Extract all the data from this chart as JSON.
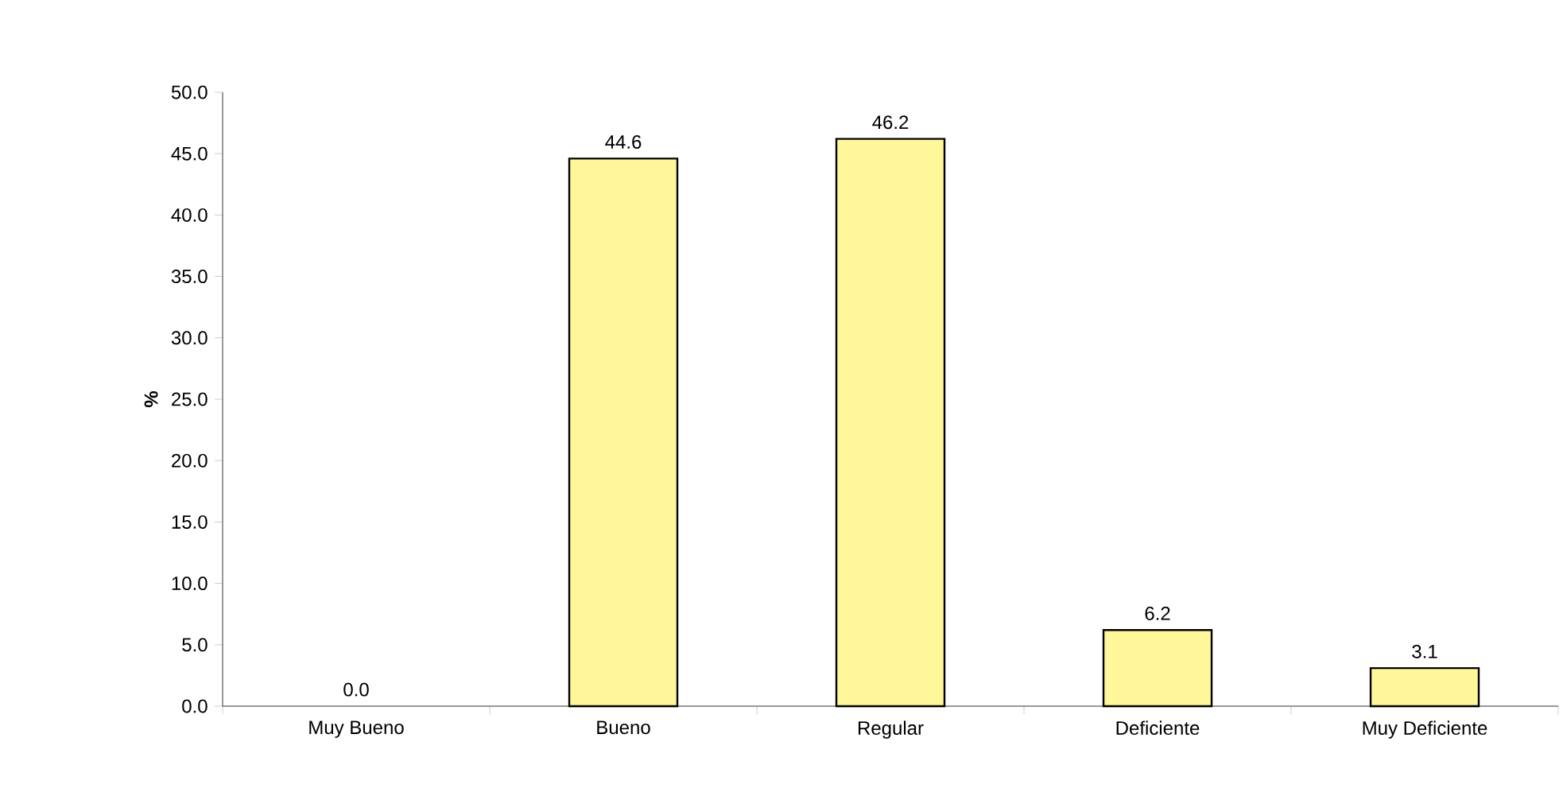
{
  "chart_data": {
    "type": "bar",
    "ylabel": "%",
    "categories": [
      "Muy Bueno",
      "Bueno",
      "Regular",
      "Deficiente",
      "Muy Deficiente"
    ],
    "values": [
      0.0,
      44.6,
      46.2,
      6.2,
      3.1
    ],
    "value_labels": [
      "0.0",
      "44.6",
      "46.2",
      "6.2",
      "3.1"
    ],
    "color": "#fff799",
    "ylim": [
      0,
      50
    ],
    "yticks": [
      {
        "value": 0,
        "label": "0.0"
      },
      {
        "value": 5,
        "label": "5.0"
      },
      {
        "value": 10,
        "label": "10.0"
      },
      {
        "value": 15,
        "label": "15.0"
      },
      {
        "value": 20,
        "label": "20.0"
      },
      {
        "value": 25,
        "label": "25.0"
      },
      {
        "value": 30,
        "label": "30.0"
      },
      {
        "value": 35,
        "label": "35.0"
      },
      {
        "value": 40,
        "label": "40.0"
      },
      {
        "value": 45,
        "label": "45.0"
      },
      {
        "value": 50,
        "label": "50.0"
      }
    ]
  }
}
